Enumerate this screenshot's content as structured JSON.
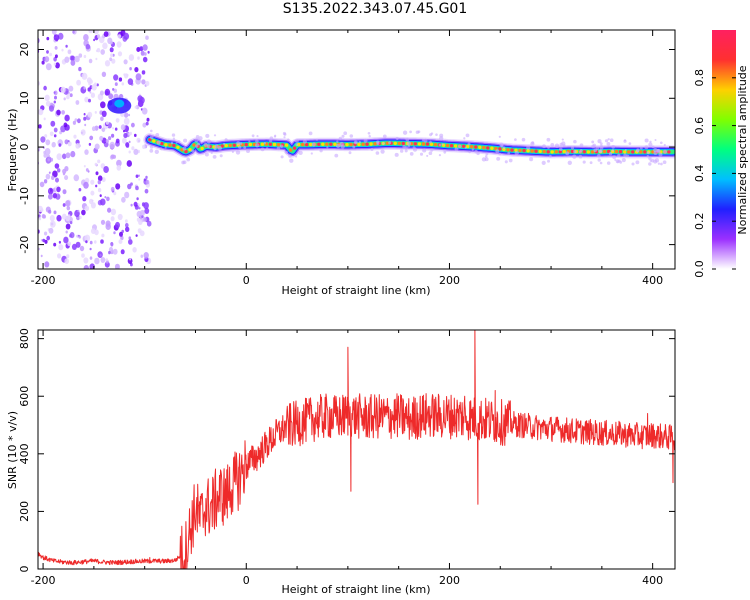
{
  "title": "S135.2022.343.07.45.G01",
  "colors": {
    "snr_line": "#ee2a2a",
    "background": "#ffffff",
    "axis": "#000000"
  },
  "chart_data": [
    {
      "type": "heatmap",
      "xlabel": "Height of straight line (km)",
      "ylabel": "Frequency (Hz)",
      "xlim": [
        -205,
        422
      ],
      "ylim": [
        -25,
        24
      ],
      "xticks": [
        -200,
        0,
        200,
        400
      ],
      "yticks": [
        -20,
        -10,
        0,
        10,
        20
      ],
      "colorbar": {
        "label": "Normalized spectral amplitude",
        "range": [
          0,
          1
        ],
        "ticks": [
          "0.0",
          "0.2",
          "0.4",
          "0.6",
          "0.8"
        ],
        "colormap": [
          "#ffffff",
          "#9b30ff",
          "#2020ff",
          "#00bfff",
          "#00ff80",
          "#80ff00",
          "#ffd000",
          "#ff3030",
          "#ff2060"
        ]
      },
      "noise_region_x": [
        -200,
        -95
      ],
      "peak_track": {
        "x": [
          -95,
          -80,
          -70,
          -60,
          -55,
          -50,
          -45,
          -40,
          -30,
          -20,
          0,
          20,
          40,
          45,
          50,
          60,
          80,
          100,
          120,
          140,
          160,
          180,
          200,
          220,
          240,
          260,
          280,
          300,
          320,
          340,
          360,
          380,
          400,
          420
        ],
        "y": [
          1.5,
          0.5,
          0.3,
          -1.0,
          -0.5,
          0.8,
          -0.5,
          0.2,
          0.0,
          0.3,
          0.5,
          0.6,
          0.4,
          -1.0,
          0.5,
          0.5,
          0.6,
          0.5,
          0.6,
          0.8,
          0.7,
          0.6,
          0.3,
          0.1,
          -0.2,
          -0.6,
          -0.8,
          -1.0,
          -0.9,
          -1.0,
          -0.9,
          -1.0,
          -1.0,
          -1.0
        ]
      },
      "side_blob": {
        "x": -125,
        "y": 8.5
      }
    },
    {
      "type": "line",
      "xlabel": "Height of straight line (km)",
      "ylabel": "SNR (10 * v/v)",
      "xlim": [
        -205,
        422
      ],
      "ylim": [
        0,
        830
      ],
      "xticks": [
        -200,
        0,
        200,
        400
      ],
      "yticks": [
        0,
        200,
        400,
        600,
        800
      ],
      "series": [
        {
          "color": "#ee2a2a",
          "x": [
            -205,
            -200,
            -190,
            -180,
            -170,
            -160,
            -150,
            -140,
            -130,
            -120,
            -110,
            -100,
            -90,
            -80,
            -70,
            -60,
            -55,
            -50,
            -45,
            -40,
            -35,
            -30,
            -25,
            -20,
            -15,
            -10,
            -5,
            0,
            10,
            20,
            30,
            40,
            50,
            60,
            70,
            80,
            90,
            100,
            110,
            120,
            130,
            140,
            150,
            160,
            170,
            180,
            190,
            200,
            210,
            220,
            230,
            240,
            250,
            260,
            270,
            280,
            290,
            300,
            310,
            320,
            330,
            340,
            350,
            360,
            370,
            380,
            390,
            400,
            410,
            422
          ],
          "y": [
            55,
            40,
            28,
            24,
            22,
            25,
            28,
            24,
            22,
            24,
            26,
            27,
            28,
            27,
            30,
            60,
            140,
            210,
            170,
            220,
            210,
            240,
            260,
            250,
            290,
            300,
            330,
            360,
            390,
            430,
            470,
            495,
            505,
            515,
            525,
            530,
            525,
            535,
            530,
            525,
            530,
            528,
            532,
            520,
            530,
            535,
            530,
            532,
            530,
            525,
            520,
            515,
            510,
            505,
            500,
            495,
            490,
            488,
            485,
            480,
            478,
            475,
            472,
            470,
            468,
            465,
            462,
            465,
            460,
            455
          ]
        }
      ],
      "spikes": [
        {
          "x": -95,
          "y": 40
        },
        {
          "x": -5,
          "y": 360
        },
        {
          "x": 100,
          "y": 770
        },
        {
          "x": 103,
          "y": 270
        },
        {
          "x": 215,
          "y": 600
        },
        {
          "x": 225,
          "y": 830
        },
        {
          "x": 228,
          "y": 225
        },
        {
          "x": 245,
          "y": 620
        },
        {
          "x": 395,
          "y": 540
        },
        {
          "x": 420,
          "y": 300
        }
      ]
    }
  ]
}
